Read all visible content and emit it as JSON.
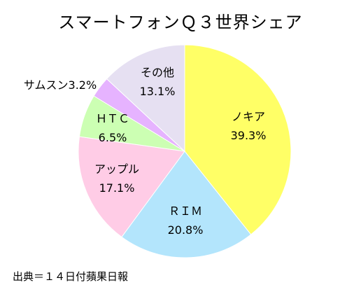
{
  "chart_data": {
    "type": "pie",
    "title": "スマートフォンＱ３世界シェア",
    "unit": "%",
    "slices": [
      {
        "name": "ノキア",
        "value_label": "39.3%",
        "value": 39.3,
        "color": "#ffff66"
      },
      {
        "name": "ＲＩＭ",
        "value_label": "20.8%",
        "value": 20.8,
        "color": "#b3e5fc"
      },
      {
        "name": "アップル",
        "value_label": "17.1%",
        "value": 17.1,
        "color": "#ffcce6"
      },
      {
        "name": "ＨＴＣ",
        "value_label": "6.5%",
        "value": 6.5,
        "color": "#ccffb3"
      },
      {
        "name": "サムスン3.2%",
        "value_label": "",
        "value": 3.2,
        "color": "#e6b3ff"
      },
      {
        "name": "その他",
        "value_label": "13.1%",
        "value": 13.1,
        "color": "#e6e0f2"
      }
    ],
    "source": "出典＝１４日付蘋果日報"
  }
}
